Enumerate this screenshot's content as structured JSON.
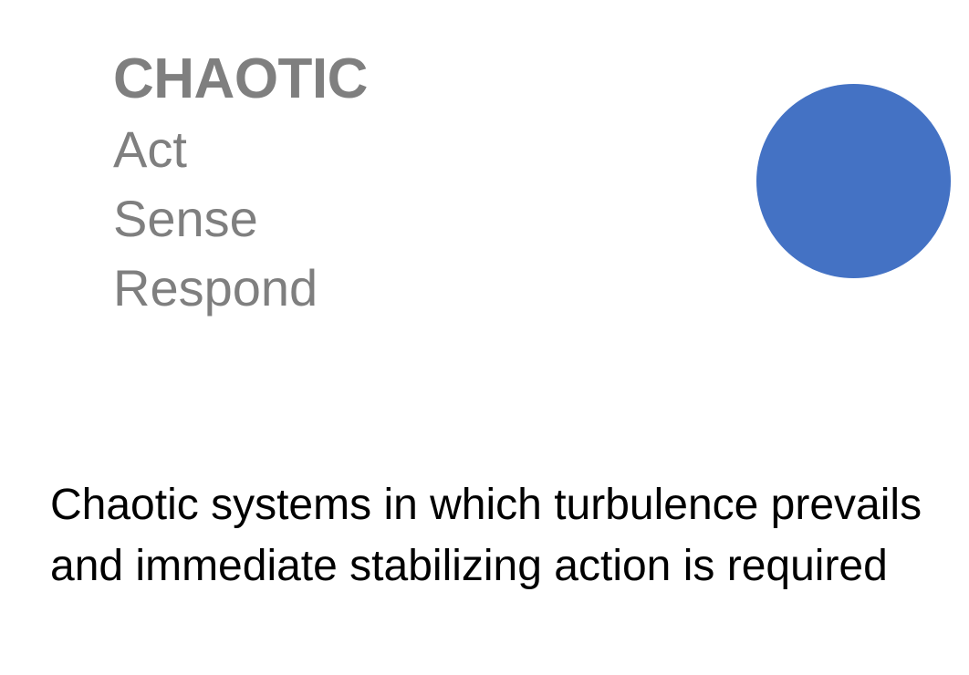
{
  "heading": {
    "title": "CHAOTIC",
    "steps": [
      "Act",
      "Sense",
      "Respond"
    ]
  },
  "description": "Chaotic systems in which turbulence prevails and immediate stabilizing action is required",
  "colors": {
    "heading_text": "#7f7f7f",
    "body_text": "#000000",
    "circle_fill": "#4472c4"
  }
}
